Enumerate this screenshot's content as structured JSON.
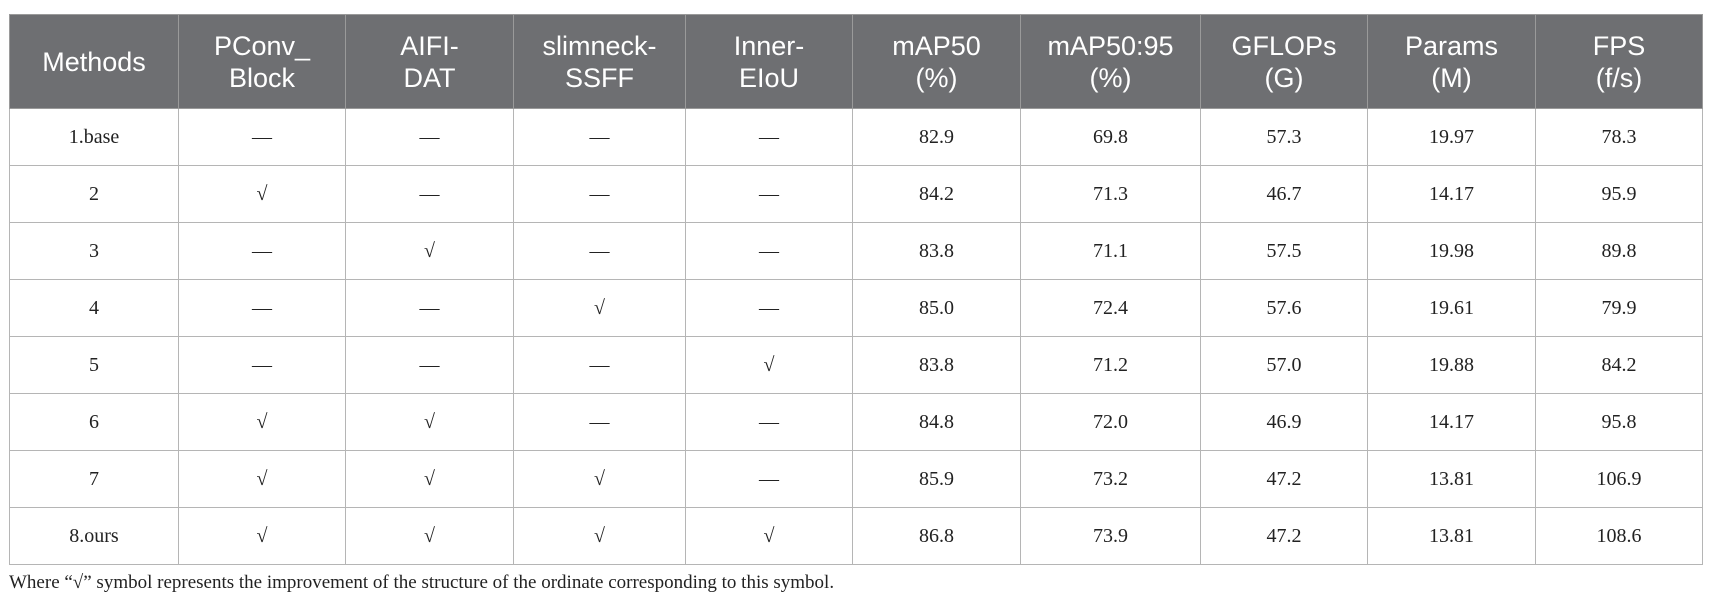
{
  "table": {
    "headers": [
      [
        "Methods"
      ],
      [
        "PConv_",
        "Block"
      ],
      [
        "AIFI-",
        "DAT"
      ],
      [
        "slimneck-",
        "SSFF"
      ],
      [
        "Inner-",
        "EIoU"
      ],
      [
        "mAP50",
        "(%)"
      ],
      [
        "mAP50:95",
        "(%)"
      ],
      [
        "GFLOPs",
        "(G)"
      ],
      [
        "Params",
        "(M)"
      ],
      [
        "FPS",
        "(f/s)"
      ]
    ],
    "rows": [
      [
        "1.base",
        "—",
        "—",
        "—",
        "—",
        "82.9",
        "69.8",
        "57.3",
        "19.97",
        "78.3"
      ],
      [
        "2",
        "√",
        "—",
        "—",
        "—",
        "84.2",
        "71.3",
        "46.7",
        "14.17",
        "95.9"
      ],
      [
        "3",
        "—",
        "√",
        "—",
        "—",
        "83.8",
        "71.1",
        "57.5",
        "19.98",
        "89.8"
      ],
      [
        "4",
        "—",
        "—",
        "√",
        "—",
        "85.0",
        "72.4",
        "57.6",
        "19.61",
        "79.9"
      ],
      [
        "5",
        "—",
        "—",
        "—",
        "√",
        "83.8",
        "71.2",
        "57.0",
        "19.88",
        "84.2"
      ],
      [
        "6",
        "√",
        "√",
        "—",
        "—",
        "84.8",
        "72.0",
        "46.9",
        "14.17",
        "95.8"
      ],
      [
        "7",
        "√",
        "√",
        "√",
        "—",
        "85.9",
        "73.2",
        "47.2",
        "13.81",
        "106.9"
      ],
      [
        "8.ours",
        "√",
        "√",
        "√",
        "√",
        "86.8",
        "73.9",
        "47.2",
        "13.81",
        "108.6"
      ]
    ]
  },
  "footnote": "Where “√” symbol represents the improvement of the structure of the ordinate corresponding to this symbol."
}
